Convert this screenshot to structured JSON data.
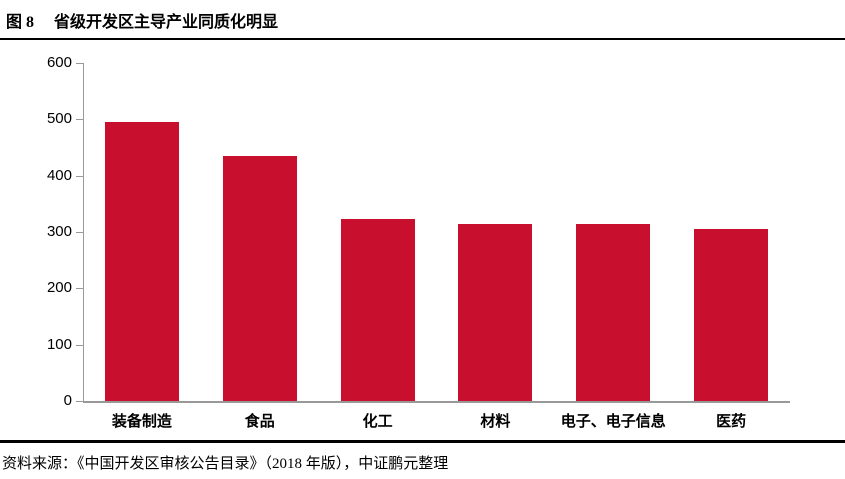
{
  "header": {
    "figure_label": "图 8",
    "title": "省级开发区主导产业同质化明显"
  },
  "footer": {
    "source": "资料来源：《中国开发区审核公告目录》（2018 年版），中证鹏元整理"
  },
  "chart_data": {
    "type": "bar",
    "title": "省级开发区主导产业同质化明显",
    "categories": [
      "装备制造",
      "食品",
      "化工",
      "材料",
      "电子、电子信息",
      "医药"
    ],
    "values": [
      495,
      435,
      323,
      315,
      314,
      305
    ],
    "xlabel": "",
    "ylabel": "",
    "ylim": [
      0,
      600
    ],
    "yticks": [
      0,
      100,
      200,
      300,
      400,
      500,
      600
    ],
    "grid": false,
    "legend": null,
    "bar_color": "#C8102E",
    "axis_color": "#999999",
    "label_color": "#000000"
  }
}
